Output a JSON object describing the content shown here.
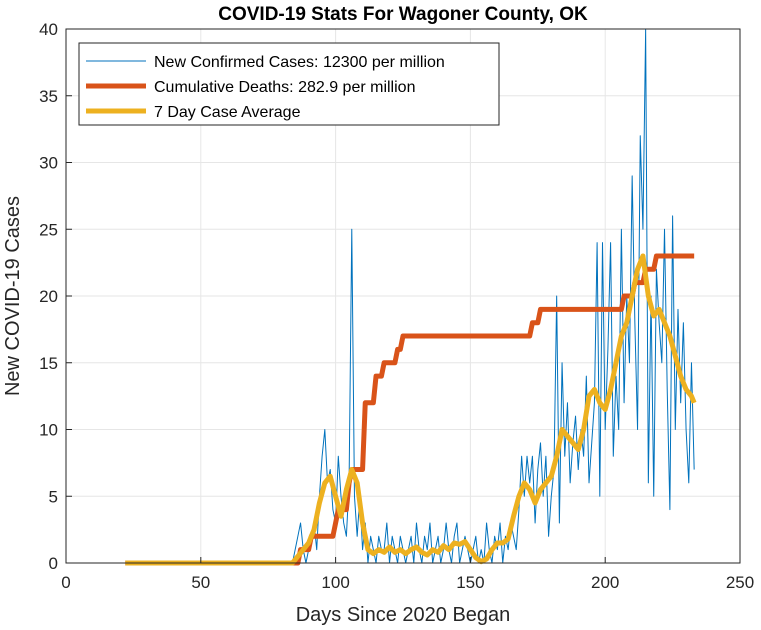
{
  "chart_data": {
    "type": "line",
    "title": "COVID-19 Stats For Wagoner County, OK",
    "xlabel": "Days Since 2020 Began",
    "ylabel": "New COVID-19 Cases",
    "xlim": [
      0,
      250
    ],
    "ylim": [
      0,
      40
    ],
    "xticks": [
      0,
      50,
      100,
      150,
      200,
      250
    ],
    "yticks": [
      0,
      5,
      10,
      15,
      20,
      25,
      30,
      35,
      40
    ],
    "grid": true,
    "legend_position": "top-left",
    "series": [
      {
        "name": "New Confirmed Cases: 12300 per million",
        "color": "#0072BD",
        "width": 1,
        "points": [
          [
            22,
            0
          ],
          [
            84,
            0
          ],
          [
            85,
            1
          ],
          [
            86,
            2
          ],
          [
            87,
            3
          ],
          [
            88,
            1
          ],
          [
            89,
            0
          ],
          [
            90,
            1
          ],
          [
            91,
            2
          ],
          [
            92,
            3
          ],
          [
            93,
            1
          ],
          [
            94,
            5
          ],
          [
            95,
            8
          ],
          [
            96,
            10
          ],
          [
            97,
            6
          ],
          [
            98,
            7
          ],
          [
            99,
            4
          ],
          [
            100,
            3
          ],
          [
            101,
            8
          ],
          [
            102,
            5
          ],
          [
            103,
            3
          ],
          [
            104,
            2
          ],
          [
            105,
            6
          ],
          [
            106,
            25
          ],
          [
            107,
            5
          ],
          [
            108,
            2
          ],
          [
            109,
            5
          ],
          [
            110,
            1
          ],
          [
            111,
            3
          ],
          [
            112,
            0
          ],
          [
            113,
            2
          ],
          [
            114,
            1
          ],
          [
            115,
            0
          ],
          [
            116,
            2
          ],
          [
            117,
            1
          ],
          [
            118,
            1
          ],
          [
            119,
            3
          ],
          [
            120,
            0
          ],
          [
            121,
            2
          ],
          [
            122,
            1
          ],
          [
            123,
            0
          ],
          [
            124,
            2
          ],
          [
            125,
            1
          ],
          [
            126,
            0
          ],
          [
            127,
            1
          ],
          [
            128,
            2
          ],
          [
            129,
            0
          ],
          [
            130,
            3
          ],
          [
            131,
            1
          ],
          [
            132,
            0
          ],
          [
            133,
            2
          ],
          [
            134,
            1
          ],
          [
            135,
            3
          ],
          [
            136,
            0
          ],
          [
            137,
            1
          ],
          [
            138,
            2
          ],
          [
            139,
            0
          ],
          [
            140,
            1
          ],
          [
            141,
            3
          ],
          [
            142,
            1
          ],
          [
            143,
            0
          ],
          [
            144,
            2
          ],
          [
            145,
            3
          ],
          [
            146,
            0
          ],
          [
            147,
            1
          ],
          [
            148,
            2
          ],
          [
            149,
            1
          ],
          [
            150,
            0
          ],
          [
            151,
            1
          ],
          [
            152,
            2
          ],
          [
            153,
            0
          ],
          [
            154,
            1
          ],
          [
            155,
            0
          ],
          [
            156,
            3
          ],
          [
            157,
            1
          ],
          [
            158,
            0
          ],
          [
            159,
            2
          ],
          [
            160,
            1
          ],
          [
            161,
            3
          ],
          [
            162,
            0
          ],
          [
            163,
            2
          ],
          [
            164,
            1
          ],
          [
            165,
            3
          ],
          [
            166,
            2
          ],
          [
            167,
            1
          ],
          [
            168,
            4
          ],
          [
            169,
            8
          ],
          [
            170,
            5
          ],
          [
            171,
            8
          ],
          [
            172,
            6
          ],
          [
            173,
            8
          ],
          [
            174,
            3
          ],
          [
            175,
            7
          ],
          [
            176,
            9
          ],
          [
            177,
            5
          ],
          [
            178,
            8
          ],
          [
            179,
            2
          ],
          [
            180,
            5
          ],
          [
            181,
            7
          ],
          [
            182,
            20
          ],
          [
            183,
            3
          ],
          [
            184,
            15
          ],
          [
            185,
            8
          ],
          [
            186,
            12
          ],
          [
            187,
            6
          ],
          [
            188,
            9
          ],
          [
            189,
            11
          ],
          [
            190,
            7
          ],
          [
            191,
            10
          ],
          [
            192,
            8
          ],
          [
            193,
            14
          ],
          [
            194,
            6
          ],
          [
            195,
            9
          ],
          [
            196,
            12
          ],
          [
            197,
            24
          ],
          [
            198,
            5
          ],
          [
            199,
            24
          ],
          [
            200,
            10
          ],
          [
            201,
            16
          ],
          [
            202,
            24
          ],
          [
            203,
            8
          ],
          [
            204,
            14
          ],
          [
            205,
            10
          ],
          [
            206,
            25
          ],
          [
            207,
            12
          ],
          [
            208,
            20
          ],
          [
            209,
            15
          ],
          [
            210,
            29
          ],
          [
            211,
            18
          ],
          [
            212,
            10
          ],
          [
            213,
            32
          ],
          [
            214,
            25
          ],
          [
            215,
            40
          ],
          [
            216,
            6
          ],
          [
            217,
            20
          ],
          [
            218,
            5
          ],
          [
            219,
            22
          ],
          [
            220,
            18
          ],
          [
            221,
            15
          ],
          [
            222,
            25
          ],
          [
            223,
            13
          ],
          [
            224,
            4
          ],
          [
            225,
            26
          ],
          [
            226,
            10
          ],
          [
            227,
            19
          ],
          [
            228,
            12
          ],
          [
            229,
            18
          ],
          [
            230,
            10
          ],
          [
            231,
            6
          ],
          [
            232,
            15
          ],
          [
            233,
            7
          ]
        ]
      },
      {
        "name": "Cumulative Deaths: 282.9 per million",
        "color": "#D95319",
        "width": 5,
        "points": [
          [
            22,
            0
          ],
          [
            86,
            0
          ],
          [
            87,
            1
          ],
          [
            90,
            1
          ],
          [
            91,
            2
          ],
          [
            99,
            2
          ],
          [
            100,
            3
          ],
          [
            101,
            4
          ],
          [
            104,
            4
          ],
          [
            105,
            6
          ],
          [
            106,
            7
          ],
          [
            110,
            7
          ],
          [
            111,
            12
          ],
          [
            114,
            12
          ],
          [
            115,
            14
          ],
          [
            117,
            14
          ],
          [
            118,
            15
          ],
          [
            122,
            15
          ],
          [
            123,
            16
          ],
          [
            124,
            16
          ],
          [
            125,
            17
          ],
          [
            172,
            17
          ],
          [
            173,
            18
          ],
          [
            175,
            18
          ],
          [
            176,
            19
          ],
          [
            206,
            19
          ],
          [
            207,
            20
          ],
          [
            210,
            20
          ],
          [
            211,
            21
          ],
          [
            214,
            21
          ],
          [
            215,
            22
          ],
          [
            218,
            22
          ],
          [
            219,
            23
          ],
          [
            233,
            23
          ]
        ]
      },
      {
        "name": "7 Day Case Average",
        "color": "#EDB120",
        "width": 5,
        "points": [
          [
            22,
            0
          ],
          [
            84,
            0
          ],
          [
            86,
            0.5
          ],
          [
            88,
            1
          ],
          [
            90,
            1.5
          ],
          [
            92,
            2.5
          ],
          [
            94,
            4.5
          ],
          [
            96,
            6
          ],
          [
            98,
            6.5
          ],
          [
            100,
            5
          ],
          [
            102,
            3.5
          ],
          [
            104,
            5.5
          ],
          [
            106,
            7
          ],
          [
            108,
            6
          ],
          [
            110,
            3
          ],
          [
            112,
            1
          ],
          [
            114,
            0.7
          ],
          [
            116,
            1
          ],
          [
            118,
            0.8
          ],
          [
            120,
            1.2
          ],
          [
            122,
            0.8
          ],
          [
            124,
            1
          ],
          [
            126,
            0.7
          ],
          [
            128,
            1
          ],
          [
            130,
            1.2
          ],
          [
            132,
            0.8
          ],
          [
            134,
            0.6
          ],
          [
            136,
            1
          ],
          [
            138,
            0.8
          ],
          [
            140,
            1.3
          ],
          [
            142,
            1
          ],
          [
            144,
            1.5
          ],
          [
            146,
            1.4
          ],
          [
            148,
            1.6
          ],
          [
            150,
            1
          ],
          [
            152,
            0.4
          ],
          [
            154,
            0.1
          ],
          [
            156,
            0.3
          ],
          [
            158,
            1
          ],
          [
            160,
            1.5
          ],
          [
            162,
            1.5
          ],
          [
            164,
            1.8
          ],
          [
            166,
            3.5
          ],
          [
            168,
            5
          ],
          [
            170,
            6
          ],
          [
            172,
            5.5
          ],
          [
            174,
            4.5
          ],
          [
            176,
            5.5
          ],
          [
            178,
            6
          ],
          [
            180,
            6.5
          ],
          [
            182,
            8
          ],
          [
            184,
            10
          ],
          [
            186,
            9.5
          ],
          [
            188,
            9
          ],
          [
            190,
            8.5
          ],
          [
            192,
            10
          ],
          [
            194,
            12.5
          ],
          [
            196,
            13
          ],
          [
            198,
            12
          ],
          [
            200,
            11.5
          ],
          [
            202,
            13
          ],
          [
            204,
            15
          ],
          [
            206,
            17
          ],
          [
            208,
            18
          ],
          [
            210,
            20
          ],
          [
            212,
            22
          ],
          [
            214,
            23
          ],
          [
            216,
            20
          ],
          [
            218,
            18.5
          ],
          [
            220,
            19
          ],
          [
            222,
            18
          ],
          [
            224,
            17
          ],
          [
            226,
            15.5
          ],
          [
            228,
            14
          ],
          [
            230,
            13
          ],
          [
            232,
            12.5
          ],
          [
            233,
            12
          ]
        ]
      }
    ]
  }
}
